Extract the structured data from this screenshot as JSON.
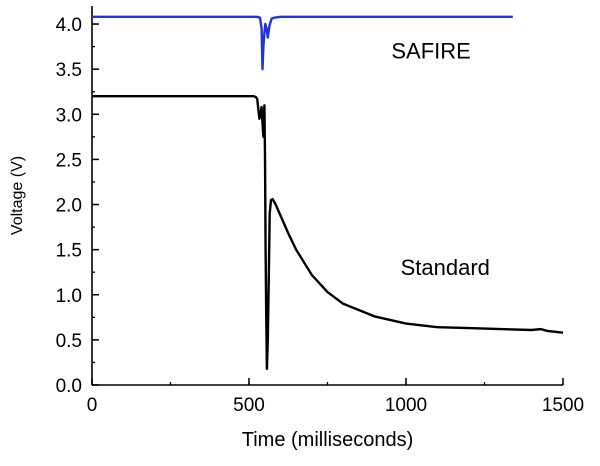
{
  "chart_data": {
    "type": "line",
    "title": "",
    "xlabel": "Time (milliseconds)",
    "ylabel": "Voltage (V)",
    "xlim": [
      0,
      1500
    ],
    "ylim": [
      0,
      4.2
    ],
    "xticks": [
      0,
      500,
      1000,
      1500
    ],
    "xtick_labels": [
      "0",
      "500",
      "1000",
      "1500"
    ],
    "yticks": [
      0,
      0.5,
      1,
      1.5,
      2,
      2.5,
      3,
      3.5,
      4
    ],
    "ytick_labels": [
      "0.0",
      "0.5",
      "1.0",
      "1.5",
      "2.0",
      "2.5",
      "3.0",
      "3.5",
      "4.0"
    ],
    "grid": false,
    "legend": "none",
    "series": [
      {
        "name": "SAFIRE",
        "color": "#1f35d6",
        "x": [
          0,
          100,
          200,
          300,
          400,
          500,
          525,
          535,
          540,
          543,
          546,
          549,
          552,
          556,
          560,
          565,
          572,
          580,
          600,
          700,
          800,
          900,
          1000,
          1100,
          1200,
          1300,
          1340
        ],
        "y": [
          4.08,
          4.08,
          4.08,
          4.08,
          4.08,
          4.08,
          4.08,
          4.07,
          3.95,
          3.5,
          3.75,
          3.9,
          4.0,
          3.95,
          3.85,
          3.98,
          4.06,
          4.07,
          4.08,
          4.08,
          4.08,
          4.08,
          4.08,
          4.08,
          4.08,
          4.08,
          4.08
        ]
      },
      {
        "name": "Standard",
        "color": "#000000",
        "x": [
          0,
          100,
          200,
          300,
          400,
          500,
          515,
          522,
          526,
          530,
          533,
          536,
          540,
          543,
          546,
          549,
          551,
          553,
          555,
          557,
          560,
          563,
          566,
          570,
          575,
          585,
          600,
          625,
          650,
          700,
          750,
          800,
          900,
          1000,
          1100,
          1200,
          1300,
          1400,
          1430,
          1450,
          1500
        ],
        "y": [
          3.2,
          3.2,
          3.2,
          3.2,
          3.2,
          3.2,
          3.2,
          3.19,
          3.17,
          3.05,
          2.95,
          3.0,
          3.08,
          2.9,
          2.75,
          3.1,
          2.55,
          1.5,
          0.7,
          0.18,
          0.5,
          1.2,
          1.9,
          2.05,
          2.06,
          2.0,
          1.88,
          1.68,
          1.5,
          1.22,
          1.03,
          0.9,
          0.76,
          0.68,
          0.64,
          0.63,
          0.62,
          0.61,
          0.62,
          0.6,
          0.58
        ]
      }
    ],
    "annotations": [
      {
        "text": "SAFIRE",
        "x": 1080,
        "y": 3.62
      },
      {
        "text": "Standard",
        "x": 1125,
        "y": 1.22
      }
    ]
  }
}
